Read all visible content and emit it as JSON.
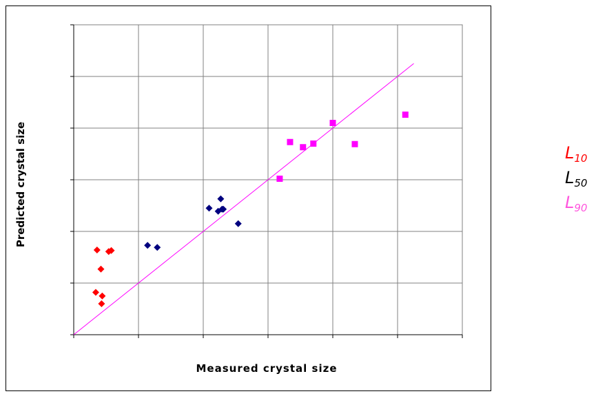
{
  "chart_data": {
    "type": "scatter",
    "xlabel": "Measured crystal size",
    "ylabel": "Predicted crystal size",
    "xlim": [
      0,
      6
    ],
    "ylim": [
      0,
      6
    ],
    "grid": true,
    "legend_position": "right",
    "series": [
      {
        "name_main": "L",
        "name_sub": "10",
        "color": "#ff0000",
        "marker": "diamond",
        "points": [
          [
            0.36,
            1.64
          ],
          [
            0.54,
            1.61
          ],
          [
            0.58,
            1.63
          ],
          [
            0.42,
            1.27
          ],
          [
            0.34,
            0.82
          ],
          [
            0.44,
            0.75
          ],
          [
            0.43,
            0.6
          ]
        ]
      },
      {
        "name_main": "L",
        "name_sub": "50",
        "color": "#00007f",
        "marker": "diamond",
        "points": [
          [
            1.14,
            1.73
          ],
          [
            1.29,
            1.69
          ],
          [
            2.09,
            2.45
          ],
          [
            2.23,
            2.39
          ],
          [
            2.27,
            2.63
          ],
          [
            2.29,
            2.43
          ],
          [
            2.31,
            2.43
          ],
          [
            2.54,
            2.15
          ]
        ]
      },
      {
        "name_main": "L",
        "name_sub": "90",
        "color": "#ff00ff",
        "marker": "square",
        "points": [
          [
            3.18,
            3.02
          ],
          [
            3.34,
            3.73
          ],
          [
            3.54,
            3.63
          ],
          [
            3.7,
            3.7
          ],
          [
            4.0,
            4.1
          ],
          [
            4.34,
            3.69
          ],
          [
            5.12,
            4.26
          ]
        ]
      }
    ],
    "fit_line": {
      "color": "#ff00ff",
      "x": [
        0,
        5.25
      ],
      "y": [
        0,
        5.25
      ]
    }
  }
}
